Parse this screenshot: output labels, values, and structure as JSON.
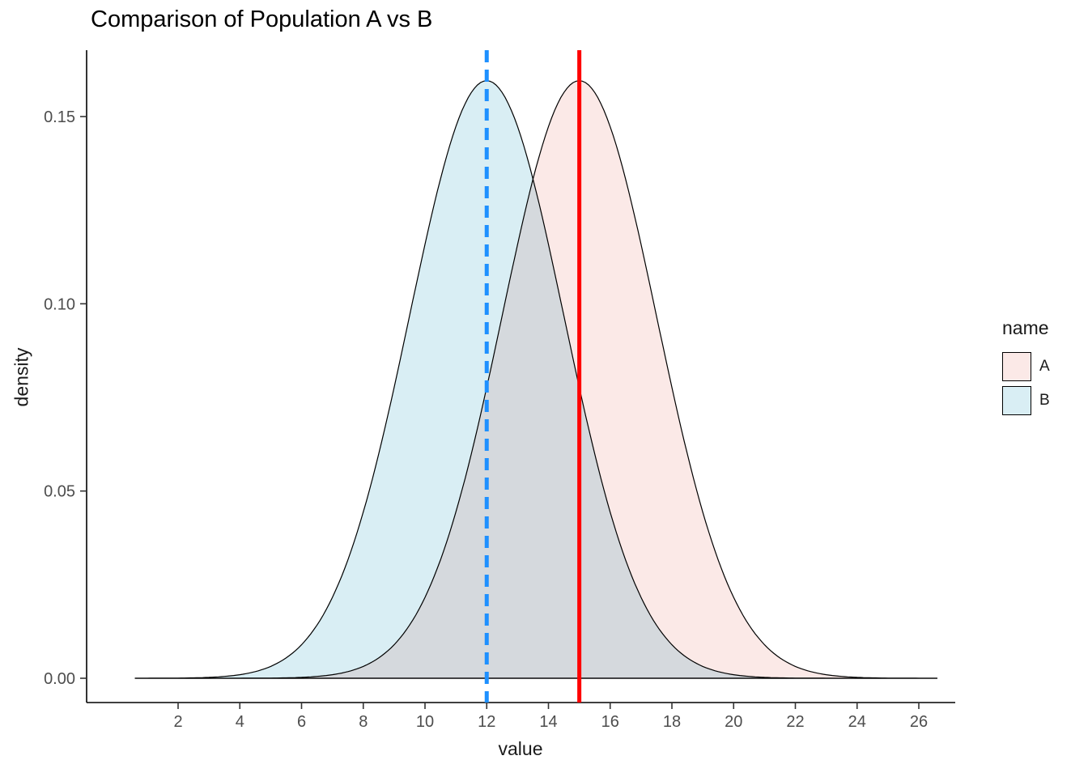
{
  "chart_data": {
    "type": "area",
    "kind": "density",
    "title": "Comparison of Population A vs B",
    "xlabel": "value",
    "ylabel": "density",
    "grid": false,
    "xlim": [
      0.6,
      26.6
    ],
    "ylim": [
      0,
      0.168
    ],
    "x_ticks": [
      2,
      4,
      6,
      8,
      10,
      12,
      14,
      16,
      18,
      20,
      22,
      24,
      26
    ],
    "y_ticks": [
      {
        "value": 0.0,
        "label": "0.00"
      },
      {
        "value": 0.05,
        "label": "0.05"
      },
      {
        "value": 0.1,
        "label": "0.10"
      },
      {
        "value": 0.15,
        "label": "0.15"
      }
    ],
    "series": [
      {
        "name": "A",
        "distribution": "normal",
        "mean": 15,
        "sd": 2.5,
        "peak_density": 0.16,
        "fill": "#FBE9E7",
        "outline": "#000000"
      },
      {
        "name": "B",
        "distribution": "normal",
        "mean": 12,
        "sd": 2.5,
        "peak_density": 0.16,
        "fill": "#D9EEF4",
        "outline": "#000000"
      }
    ],
    "vlines": [
      {
        "series": "B",
        "x": 12,
        "color": "#1E90FF",
        "style": "dashed",
        "width": 5
      },
      {
        "series": "A",
        "x": 15,
        "color": "#FF0000",
        "style": "solid",
        "width": 5
      }
    ],
    "legend": {
      "title": "name",
      "position": "right",
      "entries": [
        {
          "label": "A",
          "color": "#FBE9E7"
        },
        {
          "label": "B",
          "color": "#D9EEF4"
        }
      ]
    }
  }
}
